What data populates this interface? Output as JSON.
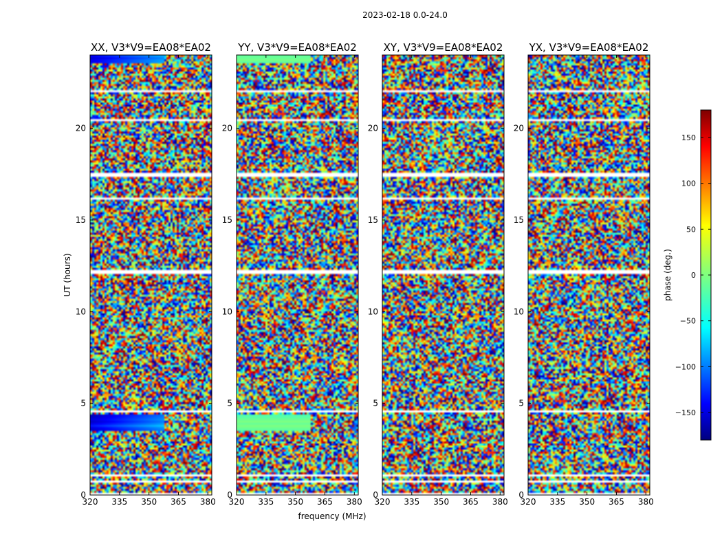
{
  "chart_data": {
    "type": "heatmap",
    "suptitle": "2023-02-18 0.0-24.0",
    "xlabel": "frequency (MHz)",
    "ylabel": "UT (hours)",
    "xlim": [
      320,
      382
    ],
    "ylim": [
      0,
      24
    ],
    "xticks": [
      "320",
      "335",
      "350",
      "365",
      "380"
    ],
    "yticks": [
      "0",
      "5",
      "10",
      "15",
      "20"
    ],
    "panels": [
      {
        "title": "XX, V3*V9=EA08*EA02"
      },
      {
        "title": "YY, V3*V9=EA08*EA02"
      },
      {
        "title": "XY, V3*V9=EA08*EA02"
      },
      {
        "title": "YX, V3*V9=EA08*EA02"
      }
    ],
    "colorbar": {
      "label": "phase (deg.)",
      "range": [
        -180,
        180
      ],
      "ticks": [
        "150",
        "100",
        "50",
        "0",
        "−50",
        "−100",
        "−150"
      ]
    }
  }
}
